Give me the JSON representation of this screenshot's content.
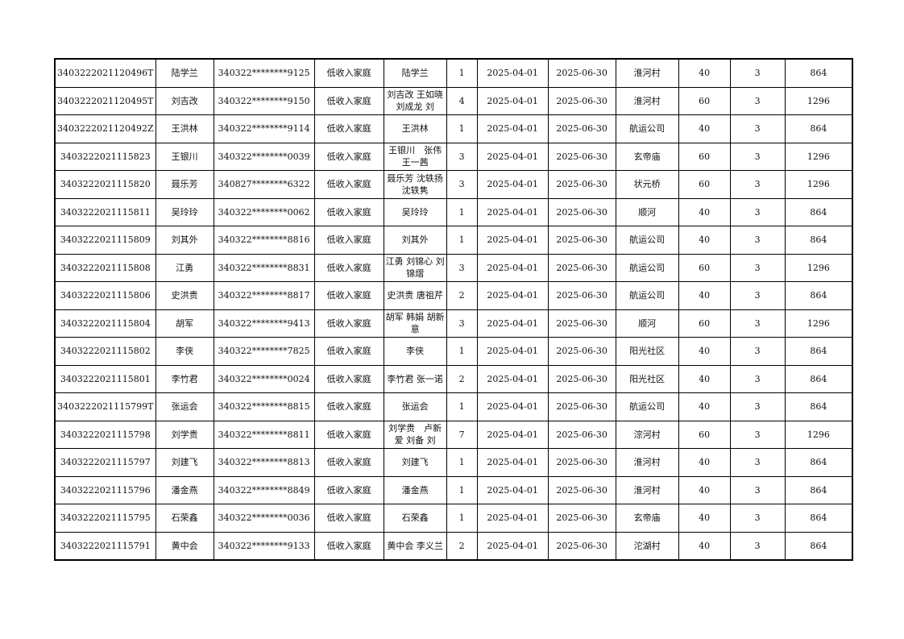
{
  "rows": [
    [
      "3403222021120496T",
      "陆学兰",
      "340322********9125",
      "低收入家庭",
      "陆学兰",
      "1",
      "2025-04-01",
      "2025-06-30",
      "淮河村",
      "40",
      "3",
      "864"
    ],
    [
      "3403222021120495T",
      "刘吉改",
      "340322********9150",
      "低收入家庭",
      "刘吉改 王如晓 刘成龙 刘",
      "4",
      "2025-04-01",
      "2025-06-30",
      "淮河村",
      "60",
      "3",
      "1296"
    ],
    [
      "3403222021120492Z",
      "王洪林",
      "340322********9114",
      "低收入家庭",
      "王洪林",
      "1",
      "2025-04-01",
      "2025-06-30",
      "航运公司",
      "40",
      "3",
      "864"
    ],
    [
      "3403222021115823",
      "王银川",
      "340322********0039",
      "低收入家庭",
      "王银川　张伟 王一茜",
      "3",
      "2025-04-01",
      "2025-06-30",
      "玄帝庙",
      "60",
      "3",
      "1296"
    ],
    [
      "3403222021115820",
      "聂乐芳",
      "340827********6322",
      "低收入家庭",
      "聂乐芳 沈轶扬 沈轶隽",
      "3",
      "2025-04-01",
      "2025-06-30",
      "状元桥",
      "60",
      "3",
      "1296"
    ],
    [
      "3403222021115811",
      "吴玲玲",
      "340322********0062",
      "低收入家庭",
      "吴玲玲",
      "1",
      "2025-04-01",
      "2025-06-30",
      "顺河",
      "40",
      "3",
      "864"
    ],
    [
      "3403222021115809",
      "刘其外",
      "340322********8816",
      "低收入家庭",
      "刘其外",
      "1",
      "2025-04-01",
      "2025-06-30",
      "航运公司",
      "40",
      "3",
      "864"
    ],
    [
      "3403222021115808",
      "江勇",
      "340322********8831",
      "低收入家庭",
      "江勇 刘锦心 刘锦熠",
      "3",
      "2025-04-01",
      "2025-06-30",
      "航运公司",
      "60",
      "3",
      "1296"
    ],
    [
      "3403222021115806",
      "史洪贵",
      "340322********8817",
      "低收入家庭",
      "史洪贵 唐祖芹",
      "2",
      "2025-04-01",
      "2025-06-30",
      "航运公司",
      "40",
      "3",
      "864"
    ],
    [
      "3403222021115804",
      "胡军",
      "340322********9413",
      "低收入家庭",
      "胡军 韩娟 胡新意",
      "3",
      "2025-04-01",
      "2025-06-30",
      "顺河",
      "60",
      "3",
      "1296"
    ],
    [
      "3403222021115802",
      "李侠",
      "340322********7825",
      "低收入家庭",
      "李侠",
      "1",
      "2025-04-01",
      "2025-06-30",
      "阳光社区",
      "40",
      "3",
      "864"
    ],
    [
      "3403222021115801",
      "李竹君",
      "340322********0024",
      "低收入家庭",
      "李竹君 张一诺",
      "2",
      "2025-04-01",
      "2025-06-30",
      "阳光社区",
      "40",
      "3",
      "864"
    ],
    [
      "3403222021115799T",
      "张运会",
      "340322********8815",
      "低收入家庭",
      "张运会",
      "1",
      "2025-04-01",
      "2025-06-30",
      "航运公司",
      "40",
      "3",
      "864"
    ],
    [
      "3403222021115798",
      "刘学贵",
      "340322********8811",
      "低收入家庭",
      "刘学贵　卢新爱 刘备 刘",
      "7",
      "2025-04-01",
      "2025-06-30",
      "淙河村",
      "60",
      "3",
      "1296"
    ],
    [
      "3403222021115797",
      "刘建飞",
      "340322********8813",
      "低收入家庭",
      "刘建飞",
      "1",
      "2025-04-01",
      "2025-06-30",
      "淮河村",
      "40",
      "3",
      "864"
    ],
    [
      "3403222021115796",
      "潘金燕",
      "340322********8849",
      "低收入家庭",
      "潘金燕",
      "1",
      "2025-04-01",
      "2025-06-30",
      "淮河村",
      "40",
      "3",
      "864"
    ],
    [
      "3403222021115795",
      "石荣鑫",
      "340322********0036",
      "低收入家庭",
      "石荣鑫",
      "1",
      "2025-04-01",
      "2025-06-30",
      "玄帝庙",
      "40",
      "3",
      "864"
    ],
    [
      "3403222021115791",
      "黄中会",
      "340322********9133",
      "低收入家庭",
      "黄中会 李义兰",
      "2",
      "2025-04-01",
      "2025-06-30",
      "沱湖村",
      "40",
      "3",
      "864"
    ]
  ]
}
